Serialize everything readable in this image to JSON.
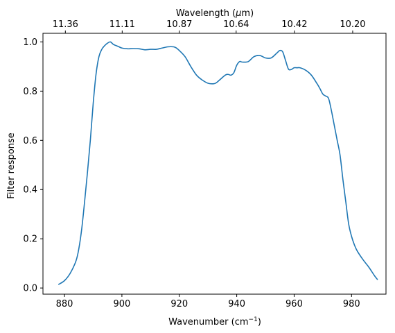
{
  "chart_data": {
    "type": "line",
    "xlabel": "Wavenumber (cm",
    "xlabel_sup": "−1",
    "xlabel_close": ")",
    "ylabel": "Filter response",
    "top_axis_label": "Wavelength (",
    "top_axis_label_unit": "μ",
    "top_axis_label_close": "m)",
    "xlim": [
      872.5,
      992
    ],
    "ylim": [
      -0.025,
      1.035
    ],
    "xticks": [
      880,
      900,
      920,
      940,
      960,
      980
    ],
    "yticks": [
      0.0,
      0.2,
      0.4,
      0.6,
      0.8,
      1.0
    ],
    "ytick_labels": [
      "0.0",
      "0.2",
      "0.4",
      "0.6",
      "0.8",
      "1.0"
    ],
    "top_ticks": [
      {
        "label": "11.36",
        "wavenumber": 880.3
      },
      {
        "label": "11.11",
        "wavenumber": 900.1
      },
      {
        "label": "10.87",
        "wavenumber": 920.0
      },
      {
        "label": "10.64",
        "wavenumber": 939.8
      },
      {
        "label": "10.42",
        "wavenumber": 960.1
      },
      {
        "label": "10.20",
        "wavenumber": 980.4
      }
    ],
    "grid": false,
    "line_color": "#1f77b4",
    "series": [
      {
        "x": [
          878,
          880,
          882,
          884,
          885,
          886,
          887,
          888,
          889,
          890,
          891,
          892,
          893,
          894,
          895,
          896,
          897,
          898,
          899,
          900,
          902,
          904,
          906,
          908,
          910,
          912,
          914,
          916,
          918,
          919,
          920,
          922,
          924,
          926,
          928,
          930,
          932,
          933,
          934,
          936,
          937,
          938,
          939,
          940,
          941,
          942,
          944,
          946,
          948,
          950,
          952,
          954,
          955,
          956,
          957,
          958,
          959,
          960,
          961,
          962,
          964,
          966,
          968,
          969,
          970,
          971,
          972,
          973,
          974,
          975,
          976,
          977,
          978,
          979,
          980,
          981,
          982,
          984,
          986,
          988,
          989
        ],
        "y": [
          0.015,
          0.03,
          0.06,
          0.11,
          0.16,
          0.24,
          0.35,
          0.47,
          0.6,
          0.75,
          0.87,
          0.94,
          0.97,
          0.985,
          0.995,
          1.0,
          0.99,
          0.985,
          0.98,
          0.975,
          0.972,
          0.973,
          0.972,
          0.968,
          0.97,
          0.97,
          0.975,
          0.98,
          0.98,
          0.975,
          0.965,
          0.94,
          0.9,
          0.865,
          0.845,
          0.832,
          0.83,
          0.835,
          0.845,
          0.865,
          0.868,
          0.865,
          0.875,
          0.905,
          0.92,
          0.918,
          0.92,
          0.94,
          0.945,
          0.935,
          0.935,
          0.955,
          0.965,
          0.96,
          0.925,
          0.89,
          0.888,
          0.895,
          0.895,
          0.895,
          0.885,
          0.865,
          0.83,
          0.81,
          0.788,
          0.78,
          0.77,
          0.72,
          0.66,
          0.6,
          0.54,
          0.44,
          0.35,
          0.26,
          0.21,
          0.175,
          0.15,
          0.115,
          0.085,
          0.05,
          0.035
        ]
      }
    ]
  }
}
